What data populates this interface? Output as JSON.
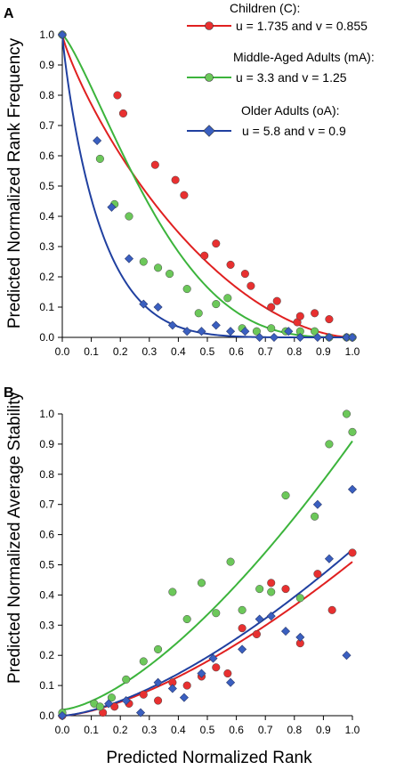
{
  "colors": {
    "children": "#e02020",
    "middle": "#3cb43c",
    "older": "#2040a0",
    "children_marker": "#e83030",
    "middle_marker": "#6cc85a",
    "older_marker": "#3a5fc0"
  },
  "xlabel": "Predicted Normalized Rank",
  "chart_data": [
    {
      "panel": "A",
      "type": "scatter",
      "ylabel": "Predicted Normalized Rank Frequency",
      "xlim": [
        0,
        1.0
      ],
      "ylim": [
        0,
        1.0
      ],
      "x_ticks": [
        "0.0",
        "0.1",
        "0.2",
        "0.3",
        "0.4",
        "0.5",
        "0.6",
        "0.7",
        "0.8",
        "0.9",
        "1.0"
      ],
      "y_ticks": [
        "0.0",
        "0.1",
        "0.2",
        "0.3",
        "0.4",
        "0.5",
        "0.6",
        "0.7",
        "0.8",
        "0.9",
        "1.0"
      ],
      "legend_position": "top-right",
      "series": [
        {
          "name": "Children (C):",
          "params": "u = 1.735  and  v = 0.855",
          "u": 1.735,
          "v": 0.855,
          "marker": "circle",
          "points": [
            [
              0.0,
              1.0
            ],
            [
              0.19,
              0.8
            ],
            [
              0.21,
              0.74
            ],
            [
              0.32,
              0.57
            ],
            [
              0.39,
              0.52
            ],
            [
              0.42,
              0.47
            ],
            [
              0.49,
              0.27
            ],
            [
              0.53,
              0.31
            ],
            [
              0.58,
              0.24
            ],
            [
              0.63,
              0.21
            ],
            [
              0.65,
              0.17
            ],
            [
              0.72,
              0.1
            ],
            [
              0.74,
              0.12
            ],
            [
              0.81,
              0.05
            ],
            [
              0.82,
              0.07
            ],
            [
              0.87,
              0.08
            ],
            [
              0.92,
              0.06
            ],
            [
              0.98,
              0.0
            ],
            [
              1.0,
              0.0
            ]
          ]
        },
        {
          "name": "Middle-Aged Adults (mA):",
          "params": "u = 3.3  and  v = 1.25",
          "u": 3.3,
          "v": 1.25,
          "marker": "circle",
          "points": [
            [
              0.0,
              1.0
            ],
            [
              0.13,
              0.59
            ],
            [
              0.18,
              0.44
            ],
            [
              0.23,
              0.4
            ],
            [
              0.28,
              0.25
            ],
            [
              0.33,
              0.23
            ],
            [
              0.37,
              0.21
            ],
            [
              0.43,
              0.16
            ],
            [
              0.47,
              0.08
            ],
            [
              0.53,
              0.11
            ],
            [
              0.57,
              0.13
            ],
            [
              0.62,
              0.03
            ],
            [
              0.67,
              0.02
            ],
            [
              0.72,
              0.03
            ],
            [
              0.77,
              0.02
            ],
            [
              0.82,
              0.02
            ],
            [
              0.87,
              0.02
            ],
            [
              0.92,
              0.0
            ],
            [
              0.98,
              0.0
            ],
            [
              1.0,
              0.0
            ]
          ]
        },
        {
          "name": "Older Adults (oA):",
          "params": "u = 5.8  and  v = 0.9",
          "u": 5.8,
          "v": 0.9,
          "marker": "diamond",
          "points": [
            [
              0.0,
              1.0
            ],
            [
              0.12,
              0.65
            ],
            [
              0.17,
              0.43
            ],
            [
              0.23,
              0.26
            ],
            [
              0.28,
              0.11
            ],
            [
              0.33,
              0.1
            ],
            [
              0.38,
              0.04
            ],
            [
              0.43,
              0.02
            ],
            [
              0.48,
              0.02
            ],
            [
              0.53,
              0.04
            ],
            [
              0.58,
              0.02
            ],
            [
              0.63,
              0.02
            ],
            [
              0.68,
              0.0
            ],
            [
              0.73,
              0.0
            ],
            [
              0.78,
              0.02
            ],
            [
              0.82,
              0.0
            ],
            [
              0.88,
              0.0
            ],
            [
              0.92,
              0.0
            ],
            [
              0.98,
              0.0
            ],
            [
              1.0,
              0.0
            ]
          ]
        }
      ]
    },
    {
      "panel": "B",
      "type": "scatter",
      "ylabel": "Predicted Normalized Average Stability",
      "xlim": [
        0,
        1.0
      ],
      "ylim": [
        0,
        1.0
      ],
      "x_ticks": [
        "0.0",
        "0.1",
        "0.2",
        "0.3",
        "0.4",
        "0.5",
        "0.6",
        "0.7",
        "0.8",
        "0.9",
        "1.0"
      ],
      "y_ticks": [
        "0.0",
        "0.1",
        "0.2",
        "0.3",
        "0.4",
        "0.5",
        "0.6",
        "0.7",
        "0.8",
        "0.9",
        "1.0"
      ],
      "series": [
        {
          "group": "Children (C)",
          "marker": "circle",
          "fit": {
            "a": 0.51,
            "p": 1.5
          },
          "points": [
            [
              0.0,
              0.0
            ],
            [
              0.14,
              0.01
            ],
            [
              0.18,
              0.03
            ],
            [
              0.23,
              0.04
            ],
            [
              0.28,
              0.07
            ],
            [
              0.33,
              0.05
            ],
            [
              0.38,
              0.11
            ],
            [
              0.43,
              0.1
            ],
            [
              0.48,
              0.13
            ],
            [
              0.53,
              0.16
            ],
            [
              0.57,
              0.14
            ],
            [
              0.62,
              0.29
            ],
            [
              0.67,
              0.27
            ],
            [
              0.72,
              0.44
            ],
            [
              0.77,
              0.42
            ],
            [
              0.82,
              0.24
            ],
            [
              0.88,
              0.47
            ],
            [
              0.93,
              0.35
            ],
            [
              1.0,
              0.54
            ]
          ]
        },
        {
          "group": "Middle-Aged Adults (mA)",
          "marker": "circle",
          "fit": {
            "a": 0.91,
            "b": 0.02,
            "p": 1.5
          },
          "points": [
            [
              0.0,
              0.01
            ],
            [
              0.11,
              0.04
            ],
            [
              0.13,
              0.03
            ],
            [
              0.17,
              0.06
            ],
            [
              0.22,
              0.12
            ],
            [
              0.28,
              0.18
            ],
            [
              0.33,
              0.22
            ],
            [
              0.38,
              0.41
            ],
            [
              0.43,
              0.32
            ],
            [
              0.48,
              0.44
            ],
            [
              0.53,
              0.34
            ],
            [
              0.58,
              0.51
            ],
            [
              0.62,
              0.35
            ],
            [
              0.68,
              0.42
            ],
            [
              0.72,
              0.41
            ],
            [
              0.77,
              0.73
            ],
            [
              0.82,
              0.39
            ],
            [
              0.87,
              0.66
            ],
            [
              0.92,
              0.9
            ],
            [
              0.98,
              1.0
            ],
            [
              1.0,
              0.94
            ]
          ]
        },
        {
          "group": "Older Adults (oA)",
          "marker": "diamond",
          "fit": {
            "a": 0.55,
            "p": 1.5
          },
          "points": [
            [
              0.0,
              0.0
            ],
            [
              0.16,
              0.04
            ],
            [
              0.22,
              0.05
            ],
            [
              0.27,
              0.01
            ],
            [
              0.33,
              0.11
            ],
            [
              0.38,
              0.09
            ],
            [
              0.42,
              0.06
            ],
            [
              0.48,
              0.14
            ],
            [
              0.52,
              0.19
            ],
            [
              0.58,
              0.11
            ],
            [
              0.62,
              0.22
            ],
            [
              0.68,
              0.32
            ],
            [
              0.72,
              0.33
            ],
            [
              0.77,
              0.28
            ],
            [
              0.82,
              0.26
            ],
            [
              0.88,
              0.7
            ],
            [
              0.92,
              0.52
            ],
            [
              0.98,
              0.2
            ],
            [
              1.0,
              0.75
            ]
          ]
        }
      ]
    }
  ]
}
